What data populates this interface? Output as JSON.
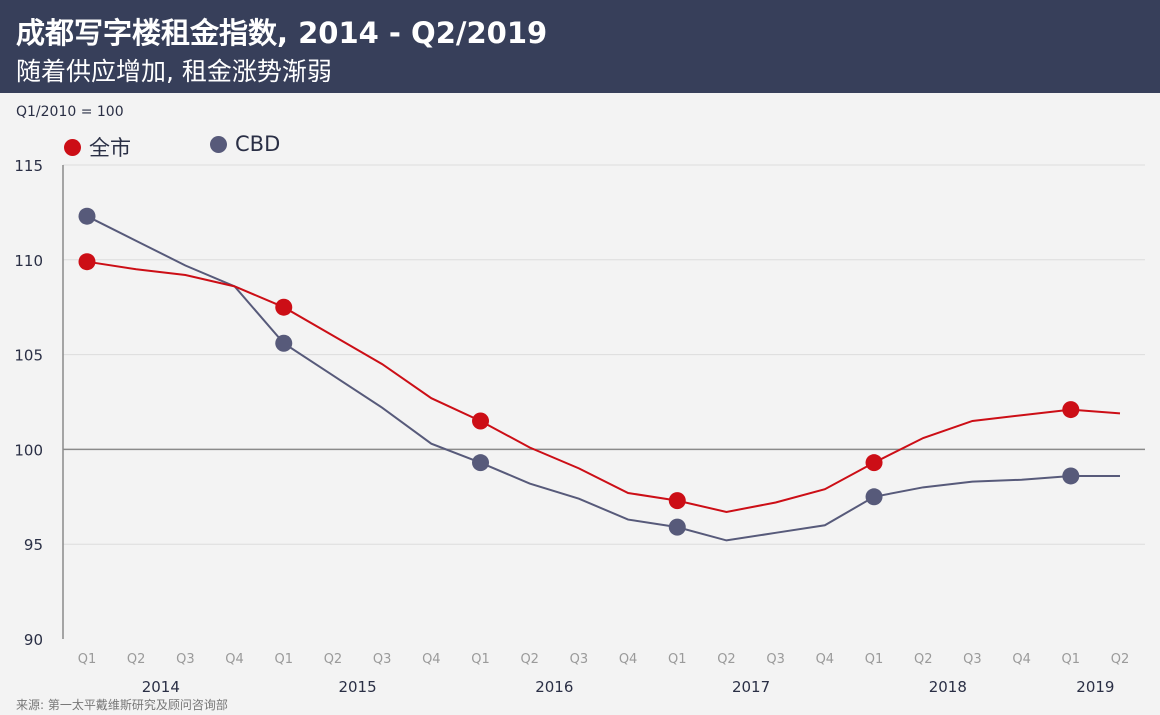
{
  "header": {
    "title": "成都写字楼租金指数, 2014 - Q2/2019",
    "subtitle": "随着供应增加, 租金涨势渐弱"
  },
  "unit_label": "Q1/2010 = 100",
  "source": "来源: 第一太平戴维斯研究及顾问咨询部",
  "colors": {
    "city": "#cc0e16",
    "cbd": "#575a7a",
    "header": "#373f5a"
  },
  "chart_data": {
    "type": "line",
    "title": "成都写字楼租金指数, 2014 - Q2/2019",
    "ylabel": "Q1/2010 = 100",
    "ylim": [
      90,
      115
    ],
    "yticks": [
      90,
      95,
      100,
      105,
      110,
      115
    ],
    "quarters": [
      "Q1",
      "Q2",
      "Q3",
      "Q4",
      "Q1",
      "Q2",
      "Q3",
      "Q4",
      "Q1",
      "Q2",
      "Q3",
      "Q4",
      "Q1",
      "Q2",
      "Q3",
      "Q4",
      "Q1",
      "Q2",
      "Q3",
      "Q4",
      "Q1",
      "Q2"
    ],
    "years": [
      {
        "label": "2014",
        "start": 0,
        "count": 4
      },
      {
        "label": "2015",
        "start": 4,
        "count": 4
      },
      {
        "label": "2016",
        "start": 8,
        "count": 4
      },
      {
        "label": "2017",
        "start": 12,
        "count": 4
      },
      {
        "label": "2018",
        "start": 16,
        "count": 4
      },
      {
        "label": "2019",
        "start": 20,
        "count": 2
      }
    ],
    "legend_position": "top-left",
    "series": [
      {
        "name": "全市",
        "color": "#cc0e16",
        "values": [
          109.9,
          109.5,
          109.2,
          108.6,
          107.5,
          106.0,
          104.5,
          102.7,
          101.5,
          100.1,
          99.0,
          97.7,
          97.3,
          96.7,
          97.2,
          97.9,
          99.3,
          100.6,
          101.5,
          101.8,
          102.1,
          101.9
        ],
        "markers": [
          0,
          4,
          8,
          12,
          16,
          20
        ]
      },
      {
        "name": "CBD",
        "color": "#575a7a",
        "values": [
          112.3,
          111.0,
          109.7,
          108.6,
          105.6,
          103.9,
          102.2,
          100.3,
          99.3,
          98.2,
          97.4,
          96.3,
          95.9,
          95.2,
          95.6,
          96.0,
          97.5,
          98.0,
          98.3,
          98.4,
          98.6,
          98.6
        ],
        "markers": [
          0,
          4,
          8,
          12,
          16,
          20
        ]
      }
    ]
  }
}
